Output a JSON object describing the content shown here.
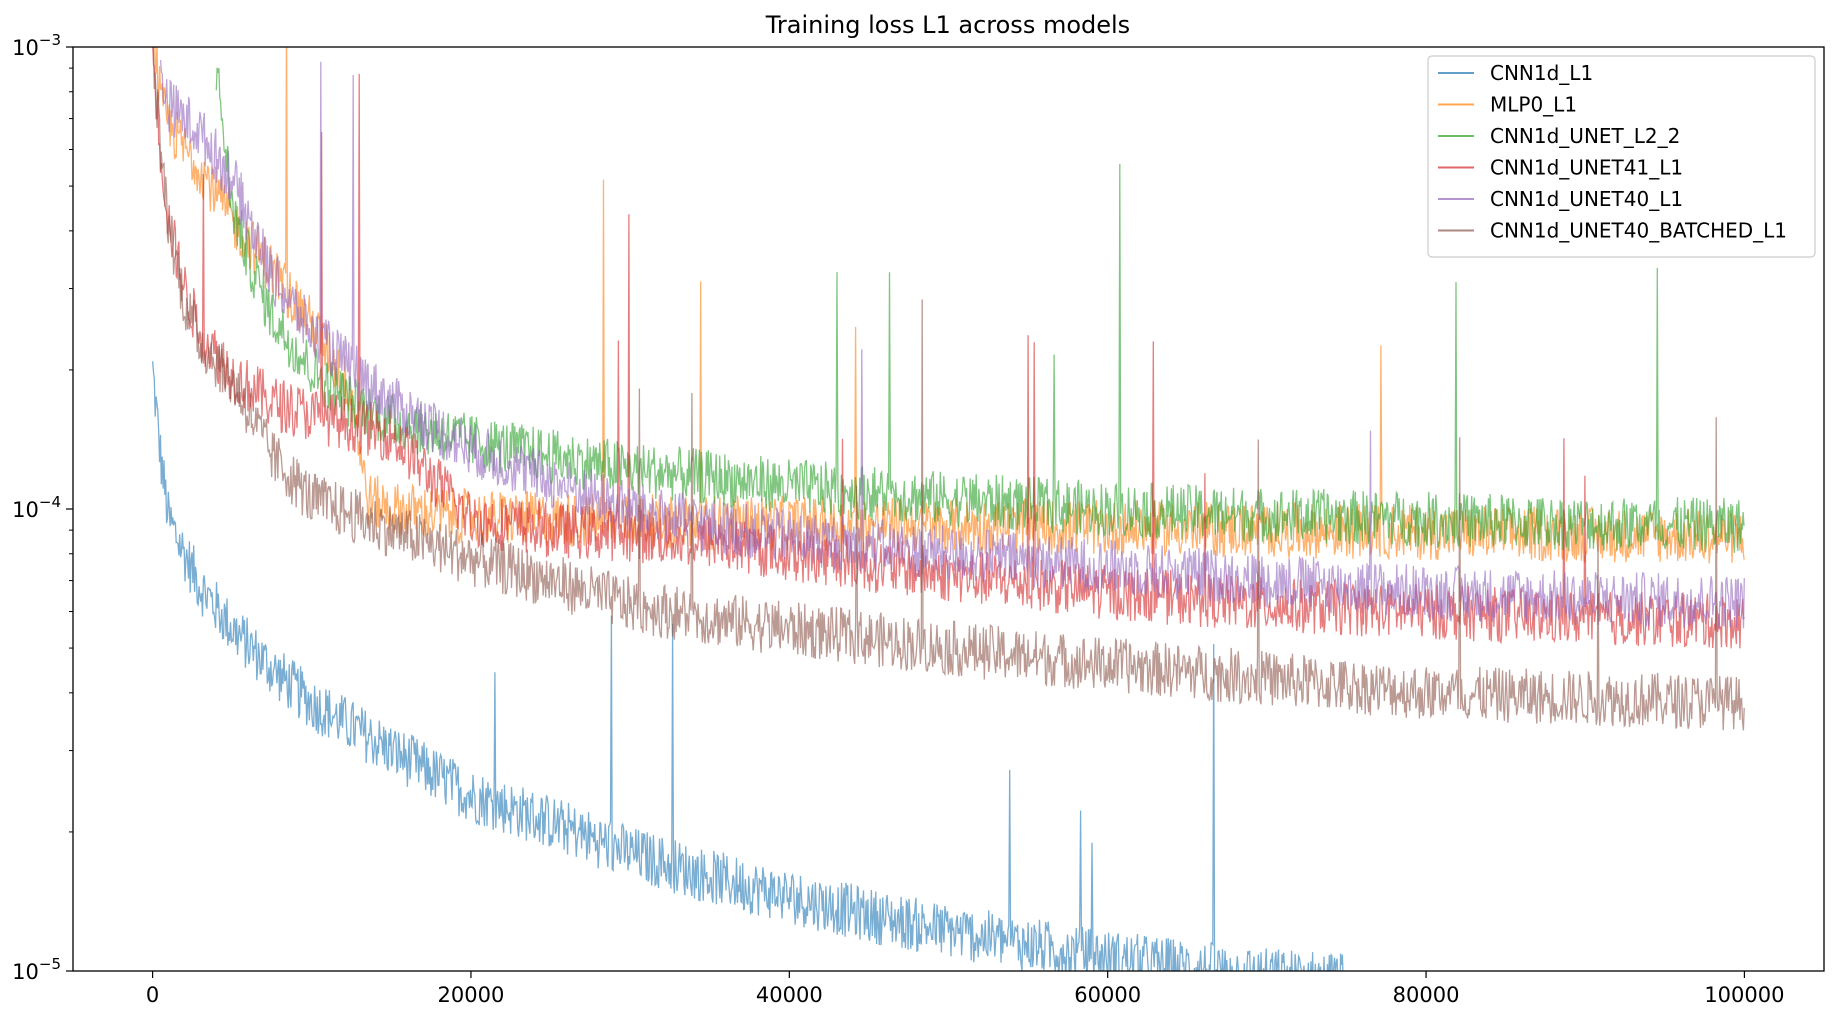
{
  "chart_data": {
    "type": "line",
    "title": "Training loss L1 across models",
    "xlabel": "",
    "ylabel": "",
    "xlim": [
      -5000,
      105000
    ],
    "ylim": [
      1e-05,
      0.001
    ],
    "yscale": "log",
    "x_ticks": [
      {
        "value": 0,
        "label": "0"
      },
      {
        "value": 20000,
        "label": "20000"
      },
      {
        "value": 40000,
        "label": "40000"
      },
      {
        "value": 60000,
        "label": "60000"
      },
      {
        "value": 80000,
        "label": "80000"
      },
      {
        "value": 100000,
        "label": "100000"
      }
    ],
    "y_ticks": [
      {
        "value": 1e-05,
        "base": "10",
        "exp": "−5"
      },
      {
        "value": 0.0001,
        "base": "10",
        "exp": "−4"
      },
      {
        "value": 0.001,
        "base": "10",
        "exp": "−3"
      }
    ],
    "grid": false,
    "legend_position": "top-right",
    "series": [
      {
        "name": "CNN1d_L1",
        "color": "#1f77b4",
        "x": [
          0,
          500,
          1000,
          2000,
          3000,
          5000,
          7500,
          10000,
          15000,
          20000,
          25000,
          30000,
          35000,
          40000,
          45000,
          50000,
          55000,
          60000,
          65000,
          70000,
          75000
        ],
        "y": [
          0.0002,
          0.00013,
          9.5e-05,
          8e-05,
          6.8e-05,
          5.5e-05,
          4.5e-05,
          3.8e-05,
          3e-05,
          2.4e-05,
          2.1e-05,
          1.8e-05,
          1.6e-05,
          1.45e-05,
          1.32e-05,
          1.22e-05,
          1.14e-05,
          1.07e-05,
          1.02e-05,
          9.8e-06,
          9.6e-06
        ]
      },
      {
        "name": "MLP0_L1",
        "color": "#ff7f0e",
        "x": [
          0,
          500,
          1000,
          2000,
          3000,
          5000,
          7500,
          10000,
          12500,
          13500,
          15000,
          20000,
          25000,
          30000,
          40000,
          50000,
          60000,
          70000,
          80000,
          90000,
          100000
        ],
        "y": [
          0.0012,
          0.00075,
          0.00068,
          0.0006,
          0.00055,
          0.00042,
          0.00033,
          0.00025,
          0.00018,
          0.000105,
          0.0001,
          9.6e-05,
          9.5e-05,
          9.4e-05,
          9.3e-05,
          9.2e-05,
          9.1e-05,
          9e-05,
          8.9e-05,
          8.8e-05,
          8.7e-05
        ]
      },
      {
        "name": "CNN1d_UNET_L2_2",
        "color": "#2ca02c",
        "x": [
          4000,
          5000,
          6000,
          7500,
          10000,
          12500,
          15000,
          20000,
          25000,
          30000,
          35000,
          40000,
          50000,
          60000,
          70000,
          80000,
          90000,
          100000
        ],
        "y": [
          0.0009,
          0.00045,
          0.00035,
          0.00026,
          0.0002,
          0.00017,
          0.000155,
          0.00014,
          0.00013,
          0.000122,
          0.000117,
          0.000112,
          0.000105,
          0.0001,
          9.7e-05,
          9.5e-05,
          9.3e-05,
          9.2e-05
        ]
      },
      {
        "name": "CNN1d_UNET41_L1",
        "color": "#d62728",
        "x": [
          0,
          500,
          1000,
          2000,
          3000,
          5000,
          7500,
          10000,
          15000,
          20000,
          25000,
          30000,
          35000,
          40000,
          50000,
          60000,
          70000,
          80000,
          90000,
          100000
        ],
        "y": [
          0.001,
          0.0006,
          0.00042,
          0.0003,
          0.00024,
          0.000195,
          0.00017,
          0.00016,
          0.000145,
          9.5e-05,
          9e-05,
          8.8e-05,
          8.5e-05,
          8e-05,
          7.2e-05,
          6.6e-05,
          6.2e-05,
          6e-05,
          5.8e-05,
          5.7e-05
        ]
      },
      {
        "name": "CNN1d_UNET40_L1",
        "color": "#9467bd",
        "x": [
          500,
          1000,
          2000,
          3000,
          5000,
          7500,
          10000,
          15000,
          20000,
          25000,
          30000,
          35000,
          40000,
          50000,
          60000,
          70000,
          80000,
          90000,
          100000
        ],
        "y": [
          0.0009,
          0.00075,
          0.0007,
          0.00065,
          0.00052,
          0.00032,
          0.00024,
          0.00017,
          0.000135,
          0.000115,
          0.0001,
          9.2e-05,
          8.7e-05,
          8e-05,
          7.5e-05,
          7e-05,
          6.6e-05,
          6.4e-05,
          6.3e-05
        ]
      },
      {
        "name": "CNN1d_UNET40_BATCHED_L1",
        "color": "#8c564b",
        "x": [
          0,
          500,
          1000,
          2000,
          3000,
          5000,
          7500,
          10000,
          15000,
          20000,
          25000,
          30000,
          35000,
          40000,
          50000,
          60000,
          70000,
          80000,
          90000,
          100000
        ],
        "y": [
          0.001,
          0.0006,
          0.00042,
          0.00028,
          0.00023,
          0.00019,
          0.00013,
          0.000105,
          9e-05,
          7.8e-05,
          7e-05,
          6.2e-05,
          5.8e-05,
          5.5e-05,
          5e-05,
          4.6e-05,
          4.3e-05,
          4e-05,
          3.9e-05,
          3.8e-05
        ]
      }
    ]
  }
}
